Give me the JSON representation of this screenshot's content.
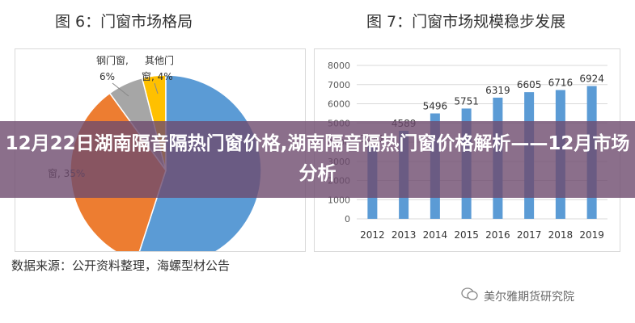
{
  "left_chart_title": "图 6：门窗市场格局",
  "right_chart_title": "图 7：门窗市场规模稳步发展",
  "source_note": "数据来源：公开资料整理，海螺型材公告",
  "wechat_label": "美尔雅期货研究院",
  "headline": "12月22日湖南隔音隔热门窗价格,湖南隔音隔热门窗价格解析——12月市场分析",
  "chart_data": [
    {
      "type": "pie",
      "slices": [
        {
          "label": "钢门窗",
          "value": 6,
          "pct": "6%",
          "color": "#a6a6a6"
        },
        {
          "label": "其他门窗",
          "value": 4,
          "pct": "4%",
          "color": "#ffc000"
        },
        {
          "label": "",
          "value": 55,
          "pct": "",
          "color": "#5b9bd5"
        },
        {
          "label": "",
          "value": 35,
          "pct": "35%",
          "color": "#ed7d31"
        }
      ],
      "visible_labels": [
        {
          "text": "钢门窗,",
          "target": "steel"
        },
        {
          "text": "6%",
          "target": "steel-pct"
        },
        {
          "text": "其他门",
          "target": "other"
        },
        {
          "text": "窗, 4%",
          "target": "other-pct"
        },
        {
          "text": "窗, 35%",
          "target": "orange"
        }
      ]
    },
    {
      "type": "bar",
      "categories": [
        "2012",
        "2013",
        "2014",
        "2015",
        "2016",
        "2017",
        "2018",
        "2019"
      ],
      "values": [
        3781,
        4589,
        5496,
        5751,
        6319,
        6605,
        6716,
        6924
      ],
      "ylim": [
        0,
        8000
      ],
      "yticks": [
        0,
        1000,
        2000,
        3000,
        4000,
        5000,
        6000,
        7000,
        8000
      ],
      "grid": true,
      "color": "#5b9bd5"
    }
  ]
}
